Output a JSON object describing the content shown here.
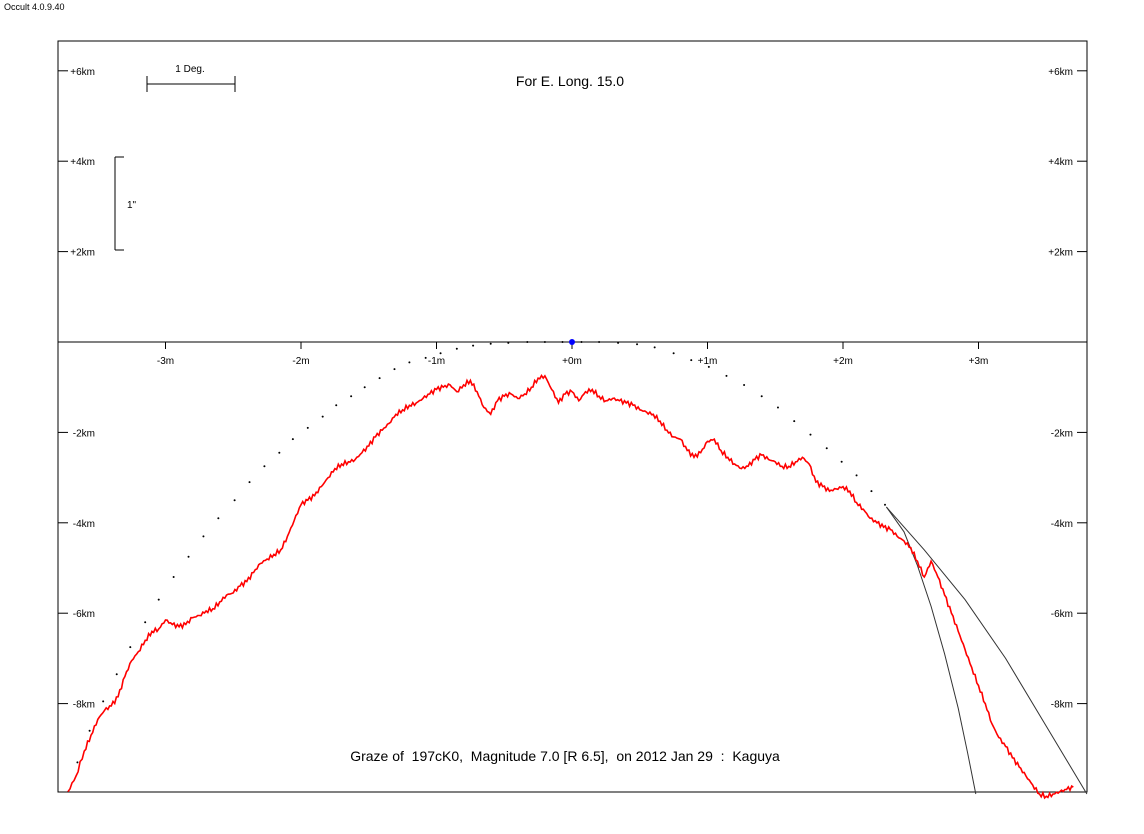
{
  "app_title": "Occult 4.0.9.40",
  "chart_data": {
    "type": "line",
    "title": "For E. Long. 15.0",
    "subtitle": "Graze of  197cK0,  Magnitude 7.0 [R 6.5],  on 2012 Jan 29  :  Kaguya",
    "xlabel": "",
    "ylabel": "",
    "x_unit": "m",
    "y_unit": "km",
    "xlim": [
      -3.8,
      3.8
    ],
    "ylim": [
      -10.0,
      6.6
    ],
    "x_ticks": [
      {
        "value": -3,
        "label": "-3m"
      },
      {
        "value": -2,
        "label": "-2m"
      },
      {
        "value": -1,
        "label": "-1m"
      },
      {
        "value": 0,
        "label": "+0m"
      },
      {
        "value": 1,
        "label": "+1m"
      },
      {
        "value": 2,
        "label": "+2m"
      },
      {
        "value": 3,
        "label": "+3m"
      }
    ],
    "y_ticks": [
      {
        "value": 6,
        "label": "+6km"
      },
      {
        "value": 4,
        "label": "+4km"
      },
      {
        "value": 2,
        "label": "+2km"
      },
      {
        "value": -2,
        "label": "-2km"
      },
      {
        "value": -4,
        "label": "-4km"
      },
      {
        "value": -6,
        "label": "-6km"
      },
      {
        "value": -8,
        "label": "-8km"
      }
    ],
    "scale_bars": {
      "angle_label": "1 Deg.",
      "arc_label": "1\""
    },
    "star_position": {
      "x": 0.0,
      "y": 0.0,
      "color": "#0000ff"
    },
    "colors": {
      "profile": "#ff0000",
      "limb": "#000000",
      "curves": "#333333"
    },
    "series": [
      {
        "kind": "profile",
        "x": [
          -3.72,
          -3.66,
          -3.6,
          -3.55,
          -3.5,
          -3.45,
          -3.4,
          -3.35,
          -3.3,
          -3.25,
          -3.2,
          -3.15,
          -3.1,
          -3.05,
          -3.0,
          -2.95,
          -2.9,
          -2.85,
          -2.8,
          -2.75,
          -2.7,
          -2.65,
          -2.6,
          -2.55,
          -2.5,
          -2.45,
          -2.4,
          -2.35,
          -2.3,
          -2.25,
          -2.2,
          -2.15,
          -2.1,
          -2.05,
          -2.0,
          -1.95,
          -1.9,
          -1.85,
          -1.8,
          -1.75,
          -1.7,
          -1.65,
          -1.6,
          -1.55,
          -1.5,
          -1.45,
          -1.4,
          -1.35,
          -1.3,
          -1.25,
          -1.2,
          -1.15,
          -1.1,
          -1.05,
          -1.0,
          -0.95,
          -0.9,
          -0.85,
          -0.8,
          -0.75,
          -0.7,
          -0.65,
          -0.6,
          -0.55,
          -0.5,
          -0.45,
          -0.4,
          -0.35,
          -0.3,
          -0.25,
          -0.2,
          -0.15,
          -0.1,
          -0.05,
          0.0,
          0.05,
          0.1,
          0.15,
          0.2,
          0.25,
          0.3,
          0.35,
          0.4,
          0.45,
          0.5,
          0.55,
          0.6,
          0.65,
          0.7,
          0.75,
          0.8,
          0.85,
          0.9,
          0.95,
          1.0,
          1.05,
          1.1,
          1.15,
          1.2,
          1.25,
          1.3,
          1.35,
          1.4,
          1.45,
          1.5,
          1.55,
          1.6,
          1.65,
          1.7,
          1.75,
          1.8,
          1.85,
          1.9,
          1.95,
          2.0,
          2.05,
          2.1,
          2.15,
          2.2,
          2.25,
          2.3,
          2.35,
          2.4,
          2.45,
          2.5,
          2.55,
          2.6,
          2.65,
          2.7,
          2.75,
          2.8,
          2.85,
          2.9,
          2.95,
          3.0,
          3.05,
          3.1,
          3.15,
          3.2,
          3.25,
          3.3,
          3.35,
          3.4,
          3.45,
          3.5,
          3.55,
          3.6,
          3.65,
          3.7
        ],
        "y": [
          -9.95,
          -9.6,
          -9.05,
          -8.7,
          -8.35,
          -8.15,
          -8.05,
          -7.85,
          -7.4,
          -7.05,
          -6.85,
          -6.6,
          -6.4,
          -6.35,
          -6.15,
          -6.25,
          -6.3,
          -6.25,
          -6.1,
          -6.05,
          -5.95,
          -5.9,
          -5.75,
          -5.6,
          -5.55,
          -5.4,
          -5.3,
          -5.1,
          -4.9,
          -4.8,
          -4.7,
          -4.6,
          -4.3,
          -3.95,
          -3.6,
          -3.5,
          -3.4,
          -3.2,
          -3.0,
          -2.8,
          -2.7,
          -2.65,
          -2.6,
          -2.45,
          -2.3,
          -2.1,
          -1.95,
          -1.8,
          -1.6,
          -1.5,
          -1.4,
          -1.35,
          -1.25,
          -1.15,
          -1.05,
          -1.0,
          -0.95,
          -1.1,
          -0.95,
          -0.85,
          -1.1,
          -1.45,
          -1.6,
          -1.3,
          -1.2,
          -1.15,
          -1.25,
          -1.15,
          -1.0,
          -0.8,
          -0.75,
          -1.05,
          -1.35,
          -1.15,
          -1.1,
          -1.3,
          -1.1,
          -1.05,
          -1.2,
          -1.3,
          -1.25,
          -1.3,
          -1.35,
          -1.4,
          -1.5,
          -1.55,
          -1.6,
          -1.75,
          -1.95,
          -2.1,
          -2.15,
          -2.4,
          -2.55,
          -2.45,
          -2.2,
          -2.15,
          -2.4,
          -2.55,
          -2.7,
          -2.8,
          -2.75,
          -2.6,
          -2.5,
          -2.6,
          -2.65,
          -2.75,
          -2.75,
          -2.65,
          -2.55,
          -2.7,
          -3.1,
          -3.2,
          -3.3,
          -3.25,
          -3.2,
          -3.3,
          -3.55,
          -3.7,
          -3.9,
          -4.0,
          -4.1,
          -4.15,
          -4.3,
          -4.4,
          -4.55,
          -4.85,
          -5.2,
          -4.85,
          -5.2,
          -5.6,
          -6.0,
          -6.4,
          -6.8,
          -7.2,
          -7.6,
          -8.0,
          -8.45,
          -8.75,
          -8.95,
          -9.2,
          -9.4,
          -9.6,
          -9.8,
          -10.0,
          -10.05,
          -10.0,
          -9.95,
          -9.9,
          -9.85
        ]
      },
      {
        "kind": "limb",
        "x": [
          -3.65,
          -3.56,
          -3.46,
          -3.36,
          -3.26,
          -3.15,
          -3.05,
          -2.94,
          -2.83,
          -2.72,
          -2.61,
          -2.49,
          -2.38,
          -2.27,
          -2.16,
          -2.06,
          -1.95,
          -1.84,
          -1.74,
          -1.63,
          -1.53,
          -1.42,
          -1.31,
          -1.2,
          -1.08,
          -0.97,
          -0.85,
          -0.73,
          -0.6,
          -0.47,
          -0.33,
          -0.2,
          -0.07,
          0.07,
          0.2,
          0.34,
          0.48,
          0.61,
          0.75,
          0.88,
          1.01,
          1.14,
          1.27,
          1.4,
          1.52,
          1.64,
          1.76,
          1.88,
          1.99,
          2.1,
          2.21,
          2.31
        ],
        "y": [
          -9.3,
          -8.6,
          -7.95,
          -7.35,
          -6.75,
          -6.2,
          -5.7,
          -5.2,
          -4.75,
          -4.3,
          -3.9,
          -3.5,
          -3.1,
          -2.75,
          -2.45,
          -2.15,
          -1.9,
          -1.65,
          -1.4,
          -1.2,
          -1.0,
          -0.8,
          -0.6,
          -0.45,
          -0.35,
          -0.25,
          -0.15,
          -0.08,
          -0.04,
          -0.02,
          0.0,
          0.0,
          0.0,
          0.0,
          0.0,
          -0.02,
          -0.05,
          -0.12,
          -0.25,
          -0.4,
          -0.55,
          -0.75,
          -0.95,
          -1.2,
          -1.45,
          -1.75,
          -2.05,
          -2.35,
          -2.65,
          -2.95,
          -3.3,
          -3.6
        ]
      },
      {
        "kind": "curve",
        "x": [
          2.32,
          2.45,
          2.55,
          2.65,
          2.75,
          2.85,
          2.92,
          2.98
        ],
        "y": [
          -3.65,
          -4.2,
          -4.95,
          -5.85,
          -6.9,
          -8.1,
          -9.1,
          -10.0
        ]
      },
      {
        "kind": "curve",
        "x": [
          2.32,
          2.6,
          2.9,
          3.2,
          3.5,
          3.8
        ],
        "y": [
          -3.65,
          -4.6,
          -5.7,
          -7.0,
          -8.5,
          -10.0
        ]
      }
    ]
  }
}
